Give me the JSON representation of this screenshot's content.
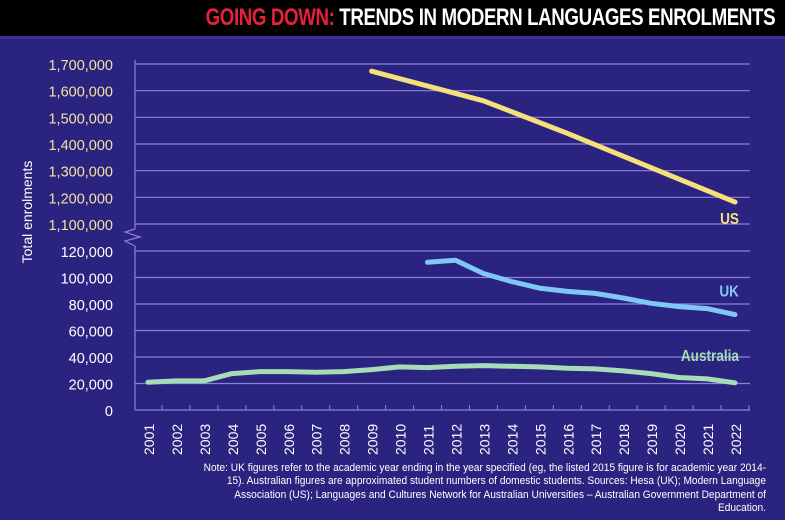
{
  "header": {
    "title_lead": "GOING DOWN:",
    "title_rest": " TRENDS IN MODERN LANGUAGES ENROLMENTS"
  },
  "colors": {
    "background": "#2b2380",
    "header_bg": "#000000",
    "title_lead": "#e8213a",
    "title_rest": "#ffffff",
    "gridline": "#8a82d8",
    "us_line": "#f6e07a",
    "uk_line": "#7fc8f5",
    "australia_line": "#a6dcb8",
    "upper_tick_text": "#f3e2a0",
    "lower_tick_text": "#ffffff"
  },
  "note": "Note: UK figures refer to the academic year ending in the year specified (eg, the listed 2015 figure is for academic year 2014-15). Australian figures are approximated student numbers of domestic students. Sources: Hesa (UK); Modern Language Association (US); Languages and Cultures Network for Australian Universities – Australian Government Department of Education.",
  "chart_data": {
    "type": "line",
    "title": "GOING DOWN: TRENDS IN MODERN LANGUAGES ENROLMENTS",
    "xlabel": "",
    "ylabel": "Total enrolments",
    "axis_break": true,
    "grid": true,
    "legend": "inline labels at line ends (right)",
    "x": [
      2001,
      2002,
      2003,
      2004,
      2005,
      2006,
      2007,
      2008,
      2009,
      2010,
      2011,
      2012,
      2013,
      2014,
      2015,
      2016,
      2017,
      2018,
      2019,
      2020,
      2021,
      2022
    ],
    "x_tick_labels": [
      "2001",
      "2002",
      "2003",
      "2004",
      "2005",
      "2006",
      "2007",
      "2008",
      "2009",
      "2010",
      "2011",
      "2012",
      "2013",
      "2014",
      "2015",
      "2016",
      "2017",
      "2018",
      "2019",
      "2020",
      "2021",
      "2022"
    ],
    "y_upper": {
      "ylim": [
        1100000,
        1700000
      ],
      "ticks": [
        1100000,
        1200000,
        1300000,
        1400000,
        1500000,
        1600000,
        1700000
      ],
      "tick_labels": [
        "1,100,000",
        "1,200,000",
        "1,300,000",
        "1,400,000",
        "1,500,000",
        "1,600,000",
        "1,700,000"
      ]
    },
    "y_lower": {
      "ylim": [
        0,
        120000
      ],
      "ticks": [
        0,
        20000,
        40000,
        60000,
        80000,
        100000,
        120000
      ],
      "tick_labels": [
        "0",
        "20,000",
        "40,000",
        "60,000",
        "80,000",
        "100,000",
        "120,000"
      ]
    },
    "series": [
      {
        "name": "US",
        "label": "US",
        "axis": "upper",
        "x": [
          2009,
          2013,
          2016,
          2022
        ],
        "values": [
          1673000,
          1562000,
          1440000,
          1182000
        ]
      },
      {
        "name": "UK",
        "label": "UK",
        "axis": "lower",
        "x": [
          2011,
          2012,
          2013,
          2014,
          2015,
          2016,
          2017,
          2018,
          2019,
          2020,
          2021,
          2022
        ],
        "values": [
          111500,
          113000,
          103000,
          97000,
          92000,
          89500,
          88000,
          84500,
          80500,
          78000,
          76500,
          72000
        ]
      },
      {
        "name": "Australia",
        "label": "Australia",
        "axis": "lower",
        "x": [
          2001,
          2002,
          2003,
          2004,
          2005,
          2006,
          2007,
          2008,
          2009,
          2010,
          2011,
          2012,
          2013,
          2014,
          2015,
          2016,
          2017,
          2018,
          2019,
          2020,
          2021,
          2022
        ],
        "values": [
          21000,
          22000,
          22000,
          27500,
          29000,
          29000,
          28500,
          29000,
          30500,
          32500,
          32000,
          33000,
          33500,
          33000,
          32500,
          31500,
          31000,
          29500,
          27500,
          24500,
          23500,
          20500
        ]
      }
    ]
  }
}
